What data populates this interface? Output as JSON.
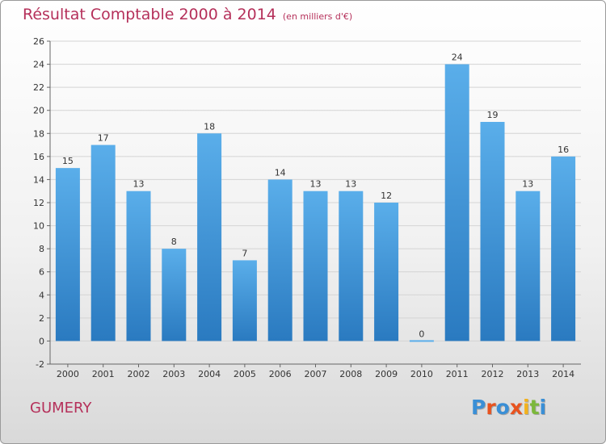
{
  "header": {
    "title": "Résultat Comptable 2000 à 2014",
    "unit": "(en milliers d'€)"
  },
  "footer": {
    "commune": "GUMERY",
    "logo": {
      "text": "Proxiti",
      "letters": [
        "P",
        "r",
        "o",
        "x",
        "i",
        "t",
        "i"
      ],
      "colors": [
        "#3a8fd6",
        "#e8531f",
        "#3a8fd6",
        "#e8531f",
        "#f2b21d",
        "#7cb83b",
        "#3a8fd6"
      ]
    }
  },
  "colors": {
    "accent": "#b5305a",
    "bar_top": "#5aaeea",
    "bar_bottom": "#2a7ac0"
  },
  "chart_data": {
    "type": "bar",
    "categories": [
      "2000",
      "2001",
      "2002",
      "2003",
      "2004",
      "2005",
      "2006",
      "2007",
      "2008",
      "2009",
      "2010",
      "2011",
      "2012",
      "2013",
      "2014"
    ],
    "values": [
      15,
      17,
      13,
      8,
      18,
      7,
      14,
      13,
      13,
      12,
      0,
      24,
      19,
      13,
      16
    ],
    "title": "Résultat Comptable 2000 à 2014",
    "xlabel": "",
    "ylabel": "",
    "ylim": [
      -2,
      26
    ],
    "yticks": [
      -2,
      0,
      2,
      4,
      6,
      8,
      10,
      12,
      14,
      16,
      18,
      20,
      22,
      24,
      26
    ],
    "grid": true,
    "legend": "none"
  }
}
